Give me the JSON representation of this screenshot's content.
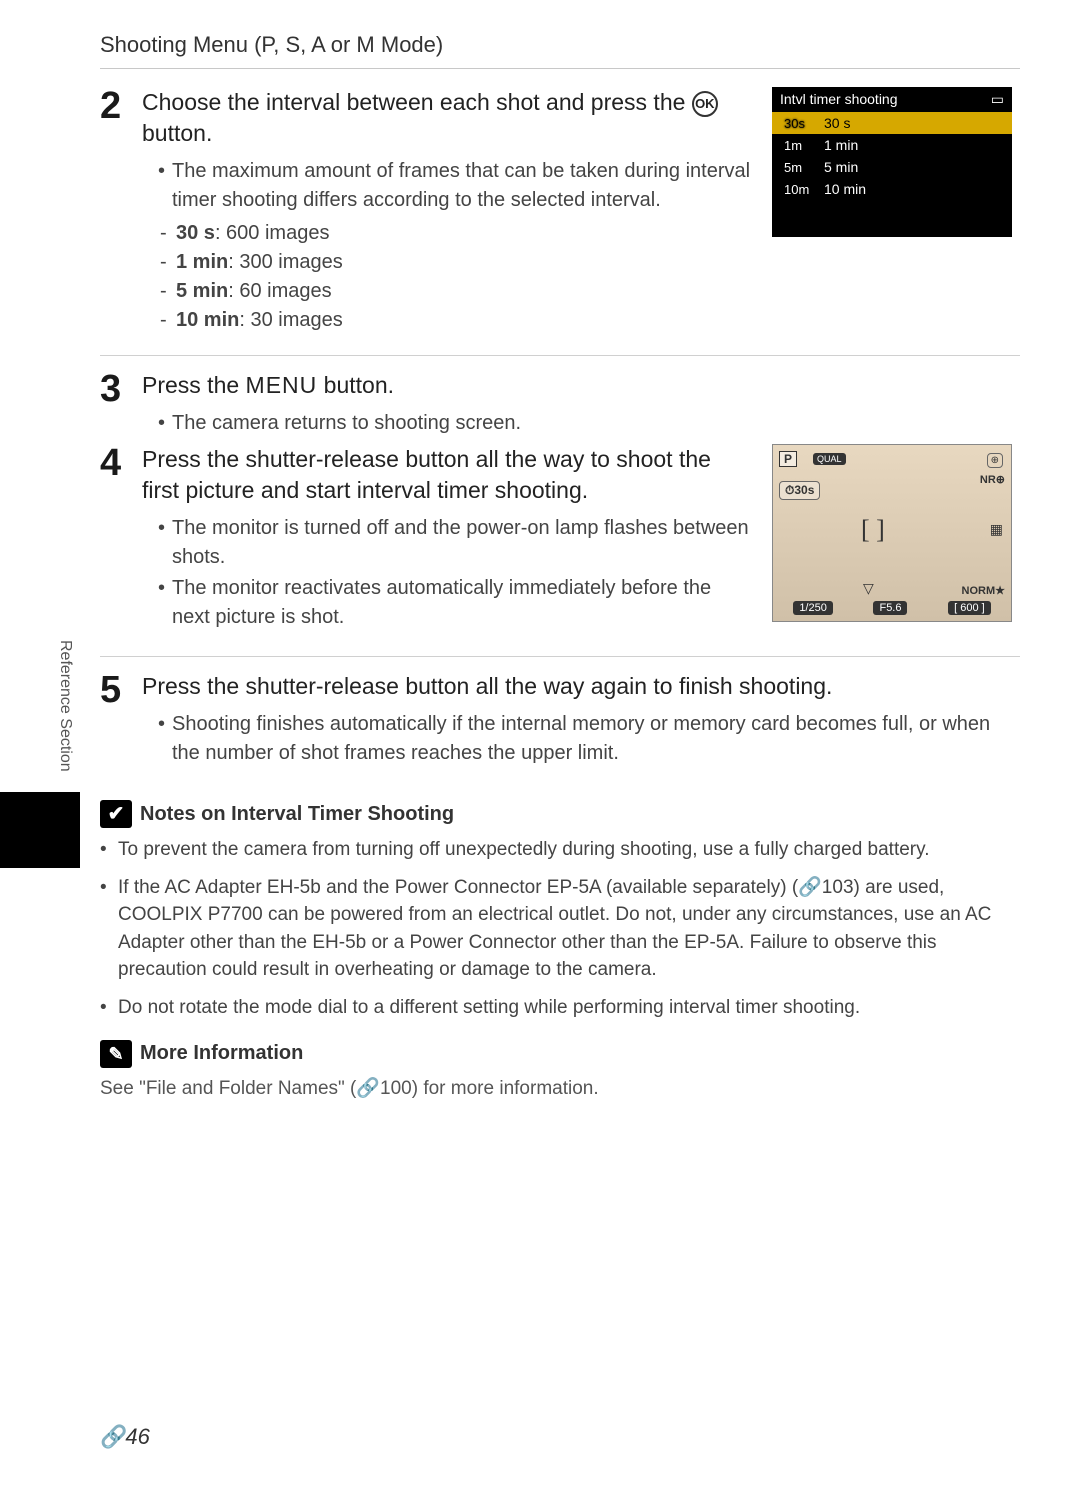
{
  "header": "Shooting Menu (P, S, A or M Mode)",
  "steps": {
    "s2": {
      "num": "2",
      "title_a": "Choose the interval between each shot and press the ",
      "title_b": " button.",
      "bullet1": "The maximum amount of frames that can be taken during interval timer shooting differs according to the selected interval.",
      "d1a": "30 s",
      "d1b": ": 600 images",
      "d2a": "1 min",
      "d2b": ": 300 images",
      "d3a": "5 min",
      "d3b": ": 60 images",
      "d4a": "10 min",
      "d4b": ": 30 images"
    },
    "s3": {
      "num": "3",
      "title_a": "Press the ",
      "title_menu": "MENU",
      "title_b": " button.",
      "bullet1": "The camera returns to shooting screen."
    },
    "s4": {
      "num": "4",
      "title": "Press the shutter-release button all the way to shoot the first picture and start interval timer shooting.",
      "bullet1": "The monitor is turned off and the power-on lamp flashes between shots.",
      "bullet2": "The monitor reactivates automatically immediately before the next picture is shot."
    },
    "s5": {
      "num": "5",
      "title": "Press the shutter-release button all the way again to finish shooting.",
      "bullet1": "Shooting finishes automatically if the internal memory or memory card becomes full, or when the number of shot frames reaches the upper limit."
    }
  },
  "fig1": {
    "header": "Intvl timer shooting",
    "rows": [
      {
        "badge": "30s",
        "label": "30 s",
        "selected": true
      },
      {
        "badge": "1m",
        "label": "1 min",
        "selected": false
      },
      {
        "badge": "5m",
        "label": "5 min",
        "selected": false
      },
      {
        "badge": "10m",
        "label": "10 min",
        "selected": false
      }
    ]
  },
  "fig2": {
    "p": "P",
    "qual": "QUAL",
    "int": "⏱30s",
    "nr": "NR⊕",
    "focus": "[   ]",
    "shutter": "1/250",
    "fnum": "F5.6",
    "remain": "[ 600 ]",
    "norm": "NORM★"
  },
  "notes": {
    "icon1": "✔",
    "title1": "Notes on Interval Timer Shooting",
    "n1": "To prevent the camera from turning off unexpectedly during shooting, use a fully charged battery.",
    "n2": "If the AC Adapter EH-5b and the Power Connector EP-5A (available separately) (🔗103) are used, COOLPIX P7700 can be powered from an electrical outlet. Do not, under any circumstances, use an AC Adapter other than the EH-5b or a Power Connector other than the EP-5A. Failure to observe this precaution could result in overheating or damage to the camera.",
    "n3": "Do not rotate the mode dial to a different setting while performing interval timer shooting.",
    "icon2": "✎",
    "title2": "More Information",
    "info": "See \"File and Folder Names\" (🔗100) for more information."
  },
  "side": "Reference Section",
  "pagenum": "🔗46",
  "ok": "OK"
}
